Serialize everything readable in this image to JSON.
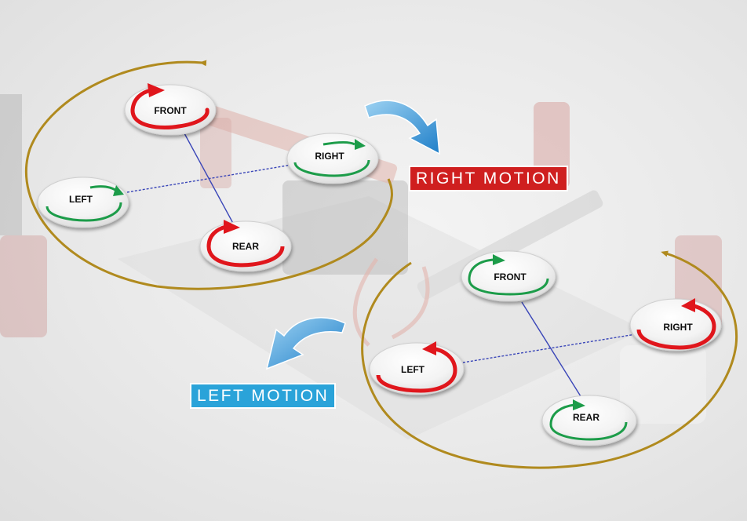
{
  "diagrams": {
    "right_motion": {
      "label": "RIGHT MOTION",
      "label_color": "#cf1f1f",
      "motors": {
        "front": {
          "label": "FRONT",
          "arrow_color": "#e0141b",
          "rotation": "clockwise"
        },
        "right": {
          "label": "RIGHT",
          "arrow_color": "#1a9c48",
          "rotation": "counter-clockwise"
        },
        "left": {
          "label": "LEFT",
          "arrow_color": "#1a9c48",
          "rotation": "counter-clockwise"
        },
        "rear": {
          "label": "REAR",
          "arrow_color": "#e0141b",
          "rotation": "clockwise"
        }
      }
    },
    "left_motion": {
      "label": "LEFT MOTION",
      "label_color": "#2aa3d9",
      "motors": {
        "front": {
          "label": "FRONT",
          "arrow_color": "#1a9c48",
          "rotation": "clockwise"
        },
        "right": {
          "label": "RIGHT",
          "arrow_color": "#e0141b",
          "rotation": "counter-clockwise"
        },
        "left": {
          "label": "LEFT",
          "arrow_color": "#e0141b",
          "rotation": "counter-clockwise"
        },
        "rear": {
          "label": "REAR",
          "arrow_color": "#1a9c48",
          "rotation": "clockwise"
        }
      }
    }
  },
  "colors": {
    "orbit": "#b08a1e",
    "axis_line": "#3a46b8",
    "motion_arrow": "#2e8fd6"
  },
  "icons": [
    "drone-frame-background",
    "yaw-orbit-arrow",
    "motion-direction-arrow",
    "rotation-arrow-icon"
  ]
}
